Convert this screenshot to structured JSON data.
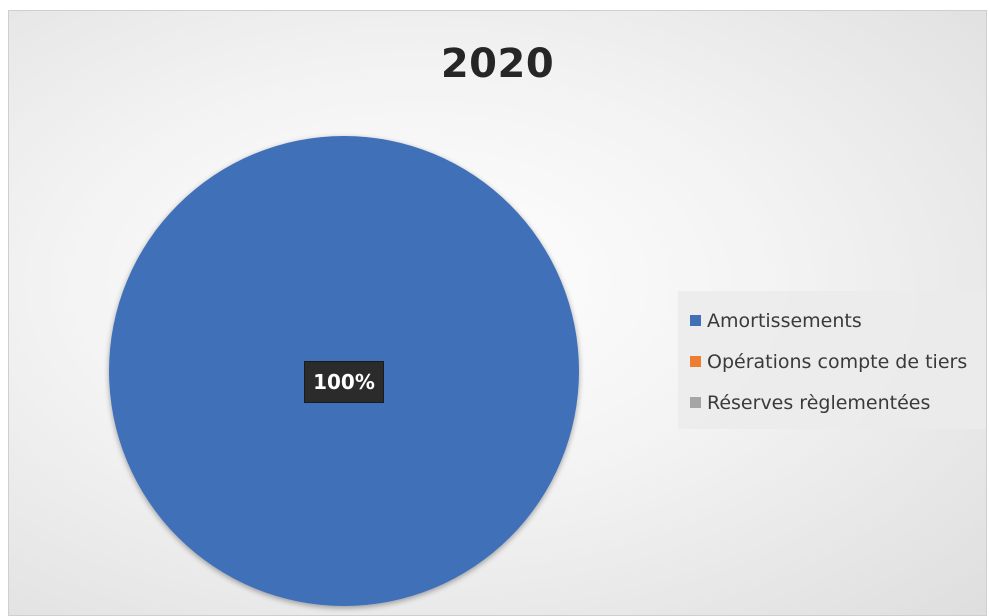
{
  "chart_data": {
    "type": "pie",
    "title": "2020",
    "categories": [
      "Amortissements",
      "Opérations compte de tiers",
      "Réserves règlementées"
    ],
    "values": [
      100,
      0,
      0
    ],
    "data_labels": [
      "100%"
    ],
    "colors": [
      "#4170b8",
      "#ed7d31",
      "#a5a5a5"
    ],
    "legend_position": "right"
  }
}
